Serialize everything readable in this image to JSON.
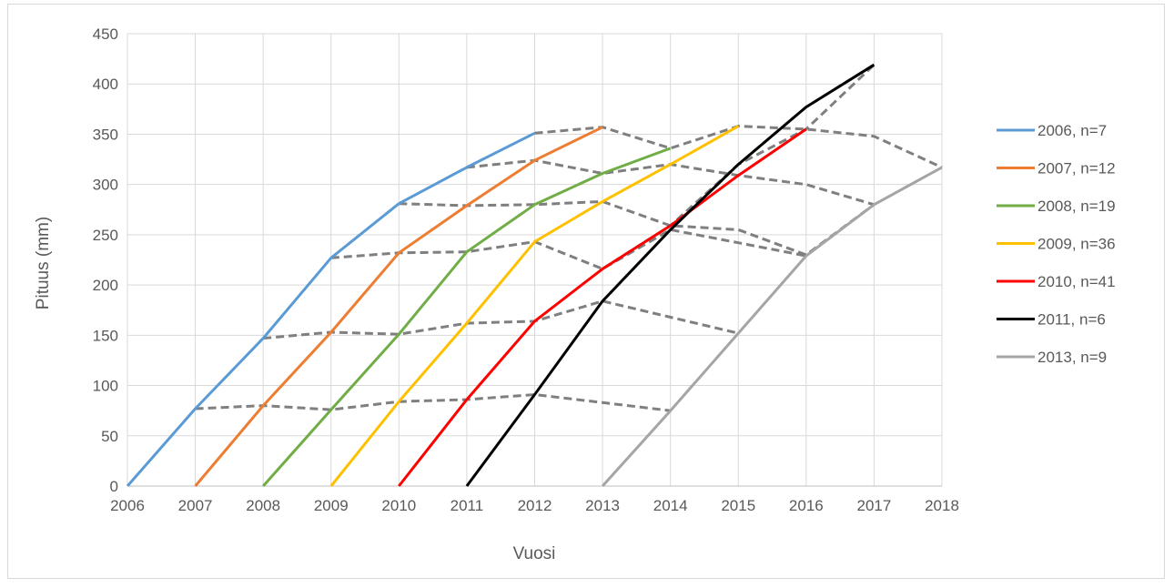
{
  "chart_data": {
    "type": "line",
    "title": "",
    "xlabel": "Vuosi",
    "ylabel": "Pituus (mm)",
    "xlim": [
      2006,
      2018
    ],
    "ylim": [
      0,
      450
    ],
    "x_ticks": [
      2006,
      2007,
      2008,
      2009,
      2010,
      2011,
      2012,
      2013,
      2014,
      2015,
      2016,
      2017,
      2018
    ],
    "y_ticks": [
      0,
      50,
      100,
      150,
      200,
      250,
      300,
      350,
      400,
      450
    ],
    "grid": true,
    "legend_position": "right",
    "series": [
      {
        "name": "2006, n=7",
        "color": "#5b9bd5",
        "x": [
          2006,
          2007,
          2008,
          2009,
          2010,
          2011,
          2012
        ],
        "y": [
          0,
          77,
          147,
          227,
          281,
          317,
          351
        ]
      },
      {
        "name": "2007, n=12",
        "color": "#ed7d31",
        "x": [
          2007,
          2008,
          2009,
          2010,
          2011,
          2012,
          2013
        ],
        "y": [
          0,
          80,
          153,
          232,
          279,
          324,
          357
        ]
      },
      {
        "name": "2008, n=19",
        "color": "#70ad47",
        "x": [
          2008,
          2009,
          2010,
          2011,
          2012,
          2013,
          2014
        ],
        "y": [
          0,
          76,
          151,
          233,
          280,
          311,
          336
        ]
      },
      {
        "name": "2009, n=36",
        "color": "#ffc000",
        "x": [
          2009,
          2010,
          2011,
          2012,
          2013,
          2014,
          2015
        ],
        "y": [
          0,
          84,
          162,
          243,
          283,
          320,
          358
        ]
      },
      {
        "name": "2010, n=41",
        "color": "#ff0000",
        "x": [
          2010,
          2011,
          2012,
          2013,
          2014,
          2015,
          2016
        ],
        "y": [
          0,
          86,
          164,
          216,
          259,
          309,
          355
        ]
      },
      {
        "name": "2011, n=6",
        "color": "#000000",
        "x": [
          2011,
          2012,
          2013,
          2014,
          2015,
          2016,
          2017
        ],
        "y": [
          0,
          91,
          184,
          255,
          320,
          377,
          419
        ]
      },
      {
        "name": "2013, n=9",
        "color": "#a5a5a5",
        "x": [
          2013,
          2014,
          2015,
          2016,
          2017,
          2018
        ],
        "y": [
          0,
          75,
          152,
          229,
          280,
          317
        ]
      }
    ],
    "dashed_series": {
      "color": "#7f7f7f",
      "lines": [
        {
          "x": [
            2007,
            2008,
            2009,
            2010,
            2011,
            2012,
            2013,
            2014
          ],
          "y": [
            77,
            80,
            76,
            84,
            86,
            91,
            83,
            75
          ]
        },
        {
          "x": [
            2008,
            2009,
            2010,
            2011,
            2012,
            2013,
            2014,
            2015
          ],
          "y": [
            147,
            153,
            151,
            162,
            164,
            184,
            168,
            152
          ]
        },
        {
          "x": [
            2009,
            2010,
            2011,
            2012,
            2013,
            2014,
            2015,
            2016
          ],
          "y": [
            227,
            232,
            233,
            243,
            216,
            255,
            242,
            229
          ]
        },
        {
          "x": [
            2010,
            2011,
            2012,
            2013,
            2014,
            2015,
            2016,
            2017
          ],
          "y": [
            281,
            279,
            280,
            283,
            259,
            255,
            230,
            280
          ]
        },
        {
          "x": [
            2011,
            2012,
            2013,
            2014,
            2015,
            2016,
            2017
          ],
          "y": [
            317,
            324,
            311,
            320,
            309,
            300,
            280
          ]
        },
        {
          "x": [
            2012,
            2013,
            2014,
            2015,
            2016,
            2017,
            2018
          ],
          "y": [
            351,
            357,
            336,
            358,
            355,
            348,
            317
          ]
        },
        {
          "x": [
            2013,
            2014,
            2015,
            2016,
            2017
          ],
          "y": [
            216,
            259,
            320,
            377,
            419
          ]
        },
        {
          "x": [
            2014,
            2015,
            2016,
            2017
          ],
          "y": [
            255,
            320,
            355,
            419
          ]
        }
      ]
    }
  }
}
